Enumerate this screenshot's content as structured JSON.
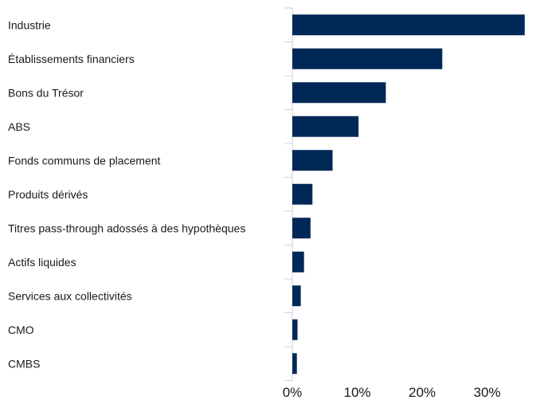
{
  "chart_data": {
    "type": "bar",
    "orientation": "horizontal",
    "categories": [
      "Industrie",
      "Établissements financiers",
      "Bons du Trésor",
      "ABS",
      "Fonds communs de placement",
      "Produits dérivés",
      "Titres pass-through adossés à des hypothèques",
      "Actifs liquides",
      "Services aux collectivités",
      "CMO",
      "CMBS"
    ],
    "values": [
      35.8,
      23.1,
      14.4,
      10.2,
      6.2,
      3.1,
      2.8,
      1.8,
      1.3,
      0.8,
      0.7
    ],
    "xlim": [
      0,
      40
    ],
    "x_ticks": [
      "0%",
      "10%",
      "20%",
      "30%"
    ],
    "x_tick_values": [
      0,
      10,
      20,
      30
    ],
    "title": "",
    "xlabel": "",
    "ylabel": "",
    "grid": false,
    "bar_color": "#002856",
    "axis_color": "#c9d1dc"
  }
}
